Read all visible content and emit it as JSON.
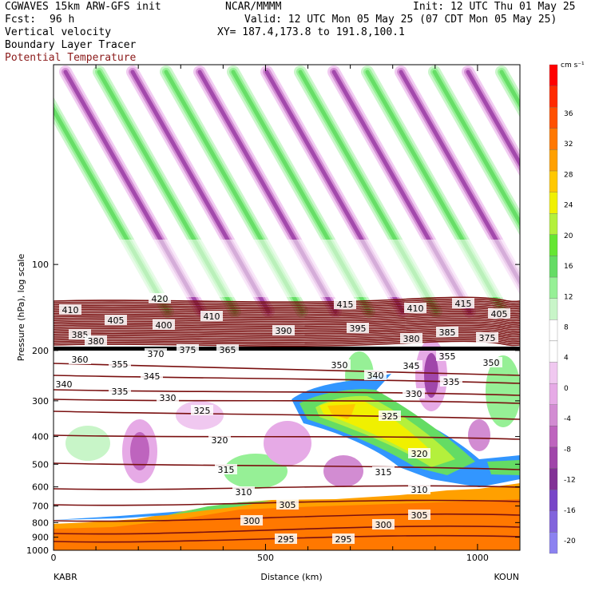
{
  "header": {
    "model": "CGWAVES 15km ARW-GFS init",
    "org": "NCAR/MMMM",
    "init": "Init: 12 UTC Thu 01 May 25",
    "fcst_label": "Fcst:",
    "fcst_value": "96 h",
    "valid": "Valid: 12 UTC Mon 05 May 25 (07 CDT Mon 05 May 25)",
    "field1": "Vertical velocity",
    "xy": "XY= 187.4,173.8 to 191.8,100.1",
    "field2": "Boundary Layer Tracer",
    "field3": "Potential Temperature",
    "field3_color": "#8b1a1a"
  },
  "chart_data": {
    "type": "heatmap",
    "title": "",
    "xlabel": "Distance (km)",
    "ylabel": "Pressure (hPa), log scale",
    "x_range": [
      0,
      1100
    ],
    "y_range_hpa": [
      1000,
      20
    ],
    "y_log": true,
    "x_ticks": [
      "0",
      "500",
      "1000"
    ],
    "x_tick_values": [
      0,
      500,
      1000
    ],
    "y_ticks": [
      "100",
      "200",
      "300",
      "400",
      "500",
      "600",
      "700",
      "800",
      "900",
      "1000"
    ],
    "y_tick_values": [
      100,
      200,
      300,
      400,
      500,
      600,
      700,
      800,
      900,
      1000
    ],
    "start_station": "KABR",
    "end_station": "KOUN",
    "colorbar": {
      "unit": "cm s⁻¹",
      "labels": [
        "36",
        "32",
        "28",
        "24",
        "20",
        "16",
        "12",
        "8",
        "4",
        "0",
        "-4",
        "-8",
        "-12",
        "-16",
        "-20"
      ],
      "colors": [
        "#ff0000",
        "#ff2a00",
        "#ff5000",
        "#ff7800",
        "#ffa000",
        "#ffc800",
        "#f0f000",
        "#b4f03c",
        "#64e632",
        "#64dc64",
        "#96f096",
        "#c8f5c8",
        "#ffffff",
        "#ffffff",
        "#f0c8f0",
        "#e6aae6",
        "#d28cd2",
        "#be64be",
        "#a046aa",
        "#823296",
        "#7846c8",
        "#8264dc",
        "#8c82f0"
      ]
    },
    "theta_contours": {
      "color": "#7a1010",
      "labels": [
        "420",
        "415",
        "415",
        "410",
        "410",
        "410",
        "405",
        "405",
        "400",
        "395",
        "390",
        "385",
        "385",
        "380",
        "380",
        "375",
        "375",
        "370",
        "365",
        "360",
        "355",
        "355",
        "350",
        "350",
        "345",
        "345",
        "340",
        "340",
        "335",
        "335",
        "330",
        "330",
        "325",
        "325",
        "320",
        "320",
        "315",
        "315",
        "310",
        "310",
        "305",
        "305",
        "300",
        "300",
        "295",
        "295"
      ]
    },
    "tracer_max_label": "325"
  }
}
